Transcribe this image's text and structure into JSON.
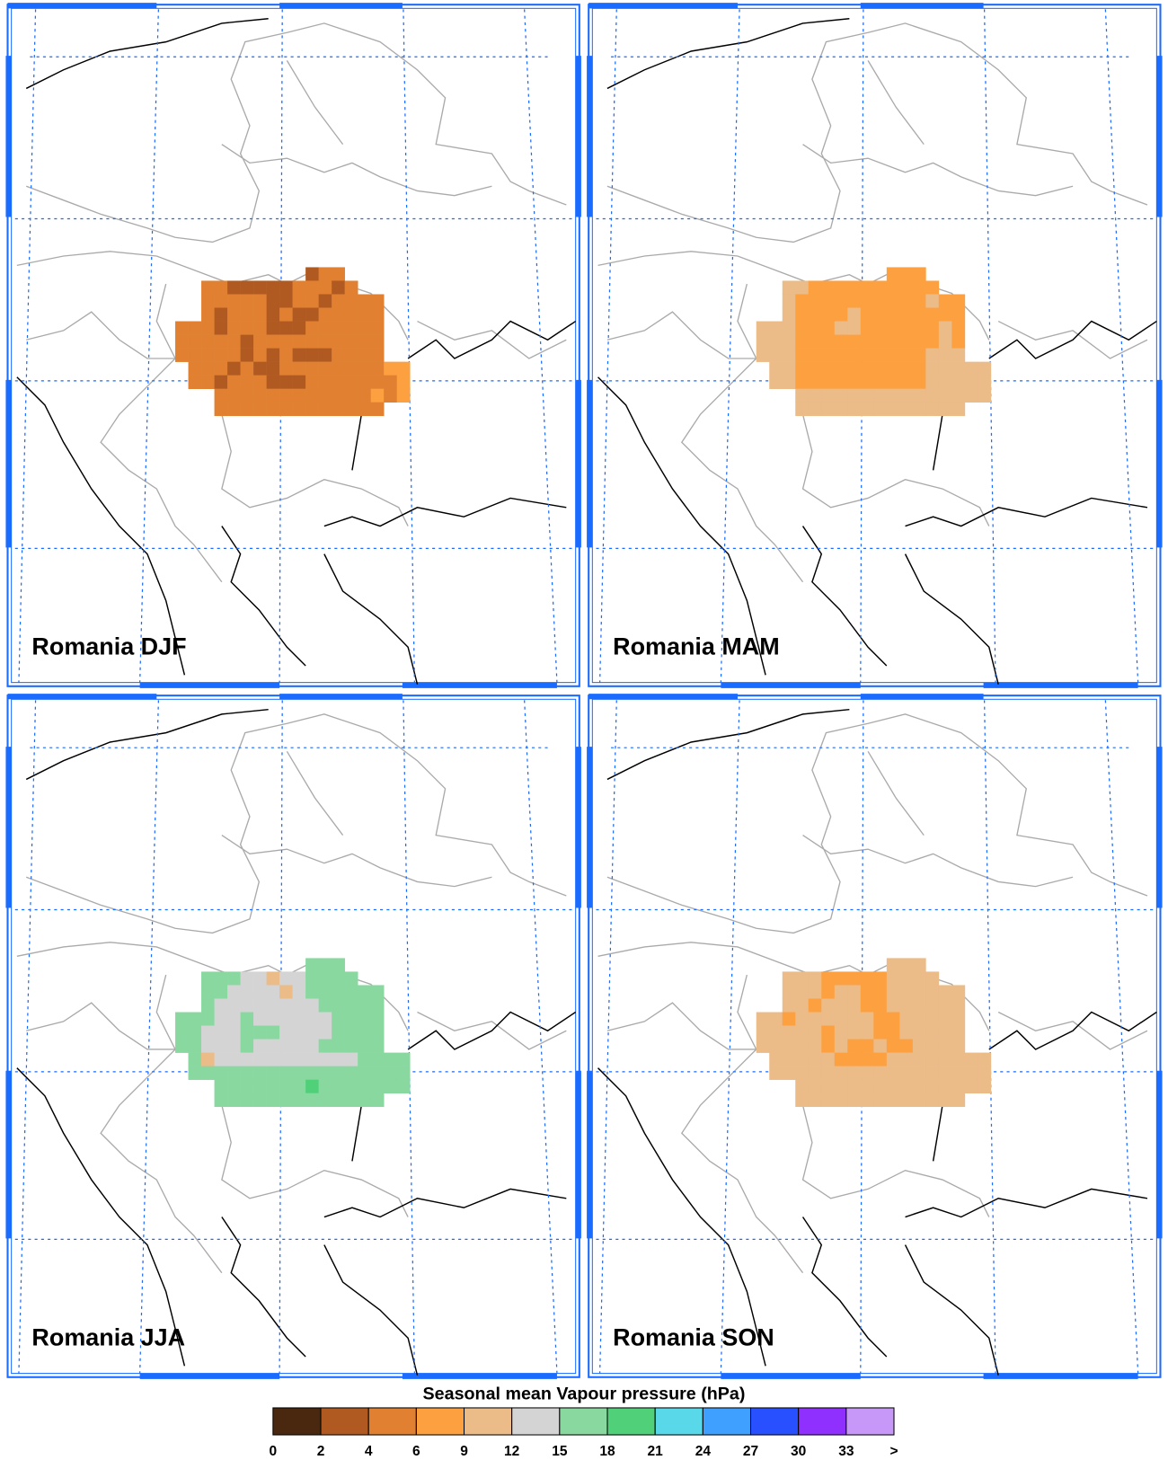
{
  "panels": [
    {
      "label": "Romania DJF",
      "cells": [
        [
          null,
          null,
          null,
          null,
          null,
          null,
          null,
          null,
          null,
          null,
          3,
          5,
          5,
          null,
          null,
          null,
          null,
          null
        ],
        [
          null,
          null,
          5,
          5,
          3,
          3,
          3,
          3,
          3,
          5,
          5,
          5,
          3,
          5,
          null,
          null,
          null,
          null
        ],
        [
          null,
          null,
          5,
          5,
          5,
          5,
          5,
          3,
          3,
          5,
          5,
          3,
          5,
          5,
          5,
          5,
          null,
          null
        ],
        [
          null,
          null,
          5,
          3,
          5,
          5,
          5,
          3,
          5,
          3,
          3,
          5,
          5,
          5,
          5,
          5,
          null,
          null
        ],
        [
          5,
          5,
          5,
          3,
          5,
          5,
          5,
          3,
          3,
          3,
          5,
          5,
          5,
          5,
          5,
          5,
          null,
          null
        ],
        [
          5,
          5,
          5,
          5,
          5,
          3,
          5,
          5,
          5,
          5,
          5,
          5,
          5,
          5,
          5,
          5,
          null,
          null
        ],
        [
          5,
          5,
          5,
          5,
          5,
          3,
          5,
          3,
          5,
          3,
          3,
          3,
          5,
          5,
          5,
          5,
          null,
          null
        ],
        [
          null,
          5,
          5,
          5,
          3,
          5,
          3,
          3,
          5,
          5,
          5,
          5,
          5,
          5,
          5,
          5,
          7,
          7
        ],
        [
          null,
          5,
          5,
          3,
          5,
          5,
          5,
          3,
          3,
          3,
          5,
          5,
          5,
          5,
          5,
          5,
          5,
          7
        ],
        [
          null,
          null,
          null,
          5,
          5,
          5,
          5,
          5,
          5,
          5,
          5,
          5,
          5,
          5,
          5,
          7,
          5,
          7
        ],
        [
          null,
          null,
          null,
          5,
          5,
          5,
          5,
          5,
          5,
          5,
          5,
          5,
          5,
          5,
          5,
          5,
          null,
          null
        ]
      ]
    },
    {
      "label": "Romania MAM",
      "cells": [
        [
          null,
          null,
          null,
          null,
          null,
          null,
          null,
          null,
          null,
          null,
          7,
          7,
          7,
          null,
          null,
          null,
          null,
          null
        ],
        [
          null,
          null,
          10,
          10,
          7,
          7,
          7,
          7,
          7,
          7,
          7,
          7,
          7,
          7,
          null,
          null,
          null,
          null
        ],
        [
          null,
          null,
          10,
          7,
          7,
          7,
          7,
          7,
          7,
          7,
          7,
          7,
          7,
          10,
          7,
          7,
          null,
          null
        ],
        [
          null,
          null,
          10,
          7,
          7,
          7,
          7,
          10,
          7,
          7,
          7,
          7,
          7,
          7,
          7,
          7,
          null,
          null
        ],
        [
          10,
          10,
          10,
          7,
          7,
          7,
          10,
          10,
          7,
          7,
          7,
          7,
          7,
          7,
          10,
          7,
          null,
          null
        ],
        [
          10,
          10,
          10,
          7,
          7,
          7,
          7,
          7,
          7,
          7,
          7,
          7,
          7,
          7,
          10,
          7,
          null,
          null
        ],
        [
          10,
          10,
          10,
          7,
          7,
          7,
          7,
          7,
          7,
          7,
          7,
          7,
          7,
          10,
          10,
          10,
          null,
          null
        ],
        [
          null,
          10,
          10,
          7,
          7,
          7,
          7,
          7,
          7,
          7,
          7,
          7,
          7,
          10,
          10,
          10,
          10,
          10
        ],
        [
          null,
          10,
          10,
          7,
          7,
          7,
          7,
          7,
          7,
          7,
          7,
          7,
          7,
          10,
          10,
          10,
          10,
          10
        ],
        [
          null,
          null,
          null,
          10,
          10,
          10,
          10,
          10,
          10,
          10,
          10,
          10,
          10,
          10,
          10,
          10,
          10,
          10
        ],
        [
          null,
          null,
          null,
          10,
          10,
          10,
          10,
          10,
          10,
          10,
          10,
          10,
          10,
          10,
          10,
          10,
          null,
          null
        ]
      ]
    },
    {
      "label": "Romania JJA",
      "cells": [
        [
          null,
          null,
          null,
          null,
          null,
          null,
          null,
          null,
          null,
          null,
          16,
          16,
          16,
          null,
          null,
          null,
          null,
          null
        ],
        [
          null,
          null,
          16,
          16,
          16,
          13,
          13,
          10,
          13,
          13,
          16,
          16,
          16,
          16,
          null,
          null,
          null,
          null
        ],
        [
          null,
          null,
          16,
          16,
          13,
          13,
          13,
          13,
          10,
          13,
          16,
          16,
          16,
          16,
          16,
          16,
          null,
          null
        ],
        [
          null,
          null,
          16,
          13,
          13,
          13,
          13,
          13,
          13,
          13,
          13,
          16,
          16,
          16,
          16,
          16,
          null,
          null
        ],
        [
          16,
          16,
          16,
          13,
          13,
          16,
          13,
          13,
          13,
          13,
          13,
          13,
          16,
          16,
          16,
          16,
          null,
          null
        ],
        [
          16,
          16,
          13,
          13,
          13,
          16,
          16,
          16,
          13,
          13,
          13,
          13,
          16,
          16,
          16,
          16,
          null,
          null
        ],
        [
          16,
          16,
          13,
          13,
          13,
          16,
          13,
          13,
          13,
          13,
          13,
          16,
          16,
          16,
          16,
          16,
          null,
          null
        ],
        [
          null,
          16,
          10,
          13,
          13,
          13,
          13,
          13,
          13,
          13,
          13,
          13,
          13,
          13,
          16,
          16,
          16,
          16
        ],
        [
          null,
          16,
          16,
          16,
          16,
          16,
          16,
          16,
          16,
          16,
          16,
          16,
          16,
          16,
          16,
          16,
          16,
          16
        ],
        [
          null,
          null,
          null,
          16,
          16,
          16,
          16,
          16,
          16,
          16,
          19,
          16,
          16,
          16,
          16,
          16,
          16,
          16
        ],
        [
          null,
          null,
          null,
          16,
          16,
          16,
          16,
          16,
          16,
          16,
          16,
          16,
          16,
          16,
          16,
          16,
          null,
          null
        ]
      ]
    },
    {
      "label": "Romania SON",
      "cells": [
        [
          null,
          null,
          null,
          null,
          null,
          null,
          null,
          null,
          null,
          null,
          10,
          10,
          10,
          null,
          null,
          null,
          null,
          null
        ],
        [
          null,
          null,
          10,
          10,
          10,
          7,
          7,
          7,
          7,
          7,
          10,
          10,
          10,
          10,
          null,
          null,
          null,
          null
        ],
        [
          null,
          null,
          10,
          10,
          10,
          7,
          10,
          10,
          7,
          7,
          10,
          10,
          10,
          10,
          10,
          10,
          null,
          null
        ],
        [
          null,
          null,
          10,
          10,
          7,
          10,
          10,
          10,
          7,
          7,
          10,
          10,
          10,
          10,
          10,
          10,
          null,
          null
        ],
        [
          10,
          10,
          7,
          10,
          10,
          10,
          10,
          10,
          10,
          7,
          7,
          10,
          10,
          10,
          10,
          10,
          null,
          null
        ],
        [
          10,
          10,
          10,
          10,
          10,
          7,
          10,
          10,
          10,
          7,
          7,
          10,
          10,
          10,
          10,
          10,
          null,
          null
        ],
        [
          10,
          10,
          10,
          10,
          10,
          7,
          10,
          7,
          7,
          10,
          7,
          7,
          10,
          10,
          10,
          10,
          null,
          null
        ],
        [
          null,
          10,
          10,
          10,
          10,
          10,
          7,
          7,
          7,
          7,
          10,
          10,
          10,
          10,
          10,
          10,
          10,
          10
        ],
        [
          null,
          10,
          10,
          10,
          10,
          10,
          10,
          10,
          10,
          10,
          10,
          10,
          10,
          10,
          10,
          10,
          10,
          10
        ],
        [
          null,
          null,
          null,
          10,
          10,
          10,
          10,
          10,
          10,
          10,
          10,
          10,
          10,
          10,
          10,
          10,
          10,
          10
        ],
        [
          null,
          null,
          null,
          10,
          10,
          10,
          10,
          10,
          10,
          10,
          10,
          10,
          10,
          10,
          10,
          10,
          null,
          null
        ]
      ]
    }
  ],
  "colorbar": {
    "title": "Seasonal mean Vapour pressure (hPa)",
    "tick_labels": [
      0,
      2,
      4,
      6,
      9,
      12,
      15,
      18,
      21,
      24,
      27,
      30,
      33,
      ">"
    ],
    "colors": [
      "#4a2810",
      "#b05a22",
      "#e08030",
      "#fca040",
      "#ebbb88",
      "#d4d4d4",
      "#88d8a0",
      "#50d078",
      "#58d8e8",
      "#40a0ff",
      "#2850ff",
      "#9030ff",
      "#c898f8"
    ]
  }
}
